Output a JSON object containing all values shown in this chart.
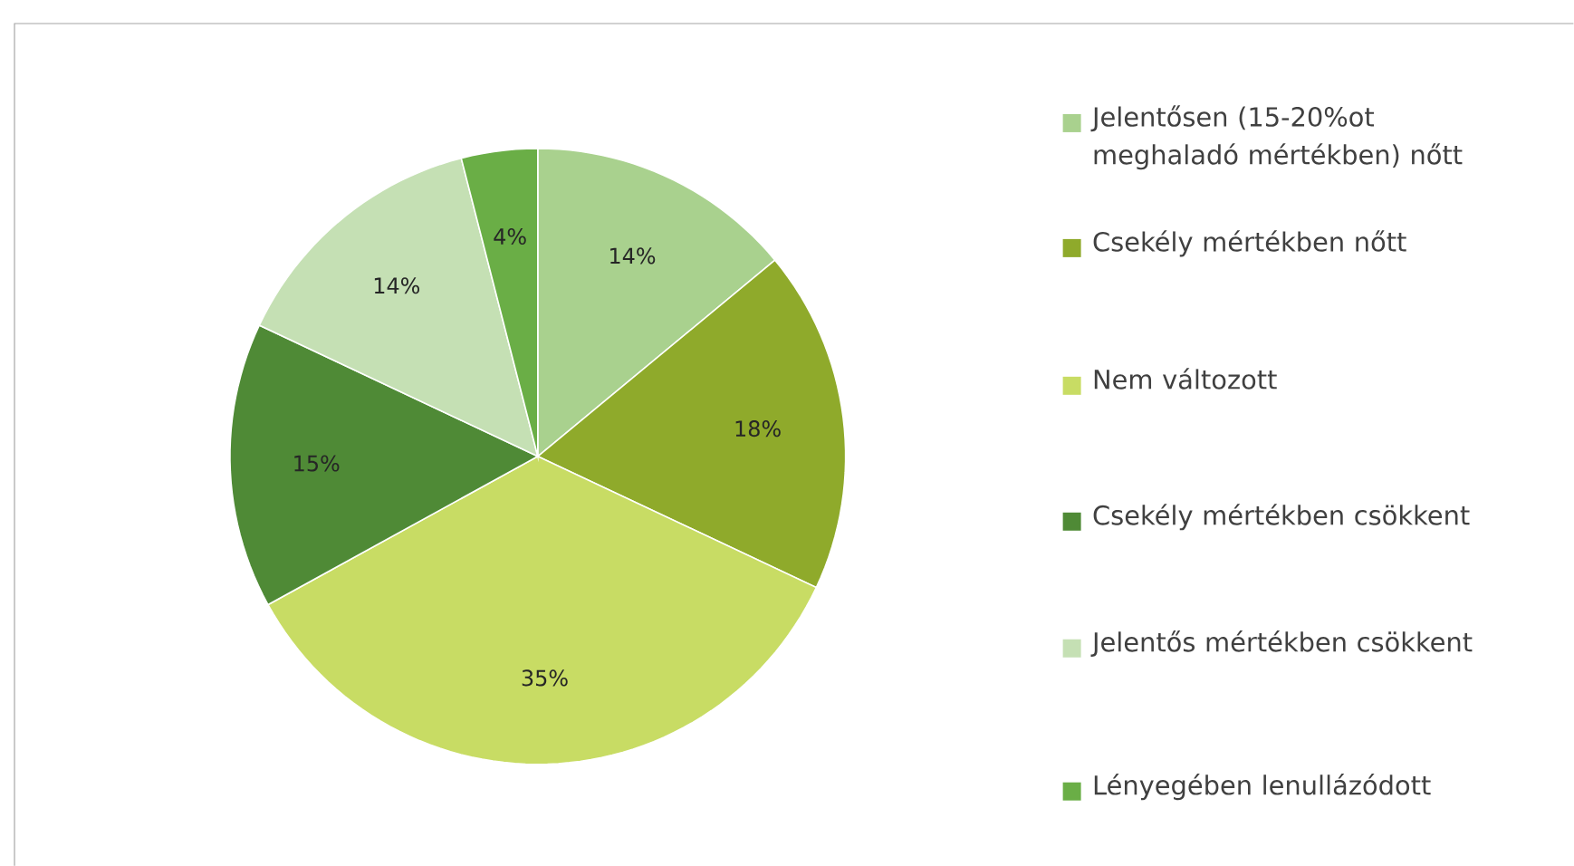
{
  "chart_data": {
    "type": "pie",
    "categories": [
      "Jelentősen (15-20%ot meghaladó mértékben) nőtt",
      "Csekély mértékben nőtt",
      "Nem változott",
      "Csekély mértékben csökkent",
      "Jelentős mértékben csökkent",
      "Lényegében lenullázódott"
    ],
    "values": [
      14,
      18,
      35,
      15,
      14,
      4
    ],
    "value_labels": [
      "14%",
      "18%",
      "35%",
      "15%",
      "14%",
      "4%"
    ],
    "colors": [
      "#a9d18e",
      "#8faa2b",
      "#c8dc64",
      "#4f8a36",
      "#c5e0b4",
      "#6aae46"
    ],
    "legend": "right"
  }
}
